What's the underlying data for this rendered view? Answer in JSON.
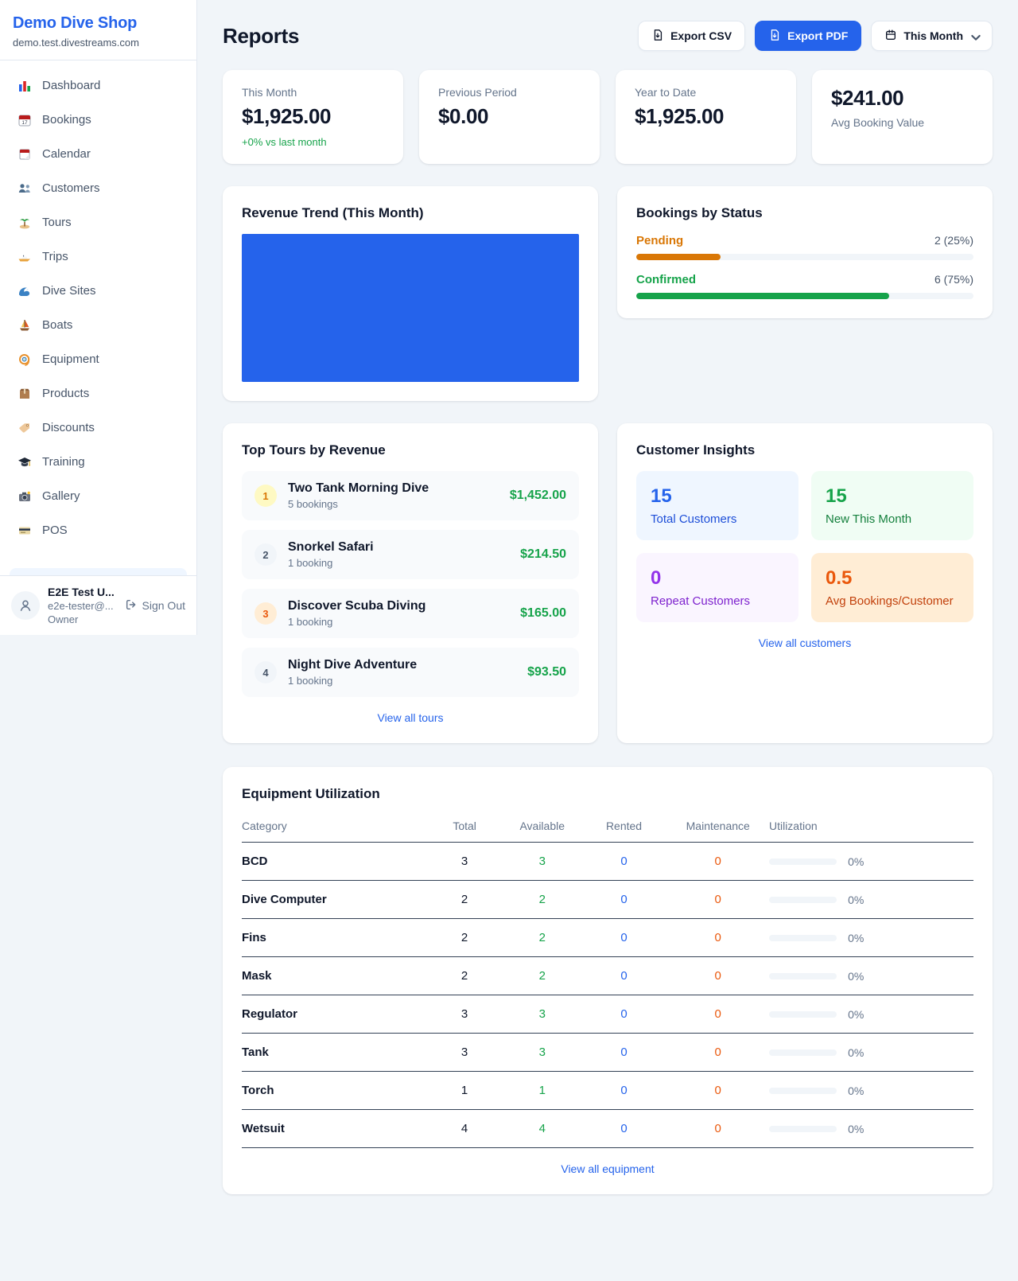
{
  "brand": {
    "name": "Demo Dive Shop",
    "domain": "demo.test.divestreams.com"
  },
  "sidebar": {
    "items": [
      {
        "icon": "bar-chart-icon",
        "label": "Dashboard"
      },
      {
        "icon": "calendar-date-icon",
        "label": "Bookings"
      },
      {
        "icon": "tear-calendar-icon",
        "label": "Calendar"
      },
      {
        "icon": "people-icon",
        "label": "Customers"
      },
      {
        "icon": "island-icon",
        "label": "Tours"
      },
      {
        "icon": "speedboat-icon",
        "label": "Trips"
      },
      {
        "icon": "wave-icon",
        "label": "Dive Sites"
      },
      {
        "icon": "sailboat-icon",
        "label": "Boats"
      },
      {
        "icon": "dive-mask-icon",
        "label": "Equipment"
      },
      {
        "icon": "package-icon",
        "label": "Products"
      },
      {
        "icon": "tag-icon",
        "label": "Discounts"
      },
      {
        "icon": "grad-cap-icon",
        "label": "Training"
      },
      {
        "icon": "camera-icon",
        "label": "Gallery"
      },
      {
        "icon": "credit-card-icon",
        "label": "POS"
      }
    ],
    "user": {
      "name": "E2E Test U...",
      "email": "e2e-tester@...",
      "role": "Owner",
      "signout_label": "Sign Out"
    }
  },
  "header": {
    "title": "Reports",
    "export_csv_label": "Export CSV",
    "export_pdf_label": "Export PDF",
    "period_label": "This Month"
  },
  "stats": [
    {
      "label": "This Month",
      "value": "$1,925.00",
      "delta": "+0% vs last month"
    },
    {
      "label": "Previous Period",
      "value": "$0.00"
    },
    {
      "label": "Year to Date",
      "value": "$1,925.00"
    },
    {
      "label": "Avg Booking Value",
      "value": "$241.00",
      "value_first": true
    }
  ],
  "revenue_trend": {
    "title": "Revenue Trend (This Month)",
    "bar_color": "#2563EB",
    "bar_fill_pct": 100
  },
  "bookings_by_status": {
    "title": "Bookings by Status",
    "rows": [
      {
        "label": "Pending",
        "count": "2 (25%)",
        "pct": 25,
        "color": "#D97706"
      },
      {
        "label": "Confirmed",
        "count": "6 (75%)",
        "pct": 75,
        "color": "#16A34A"
      }
    ]
  },
  "top_tours": {
    "title": "Top Tours by Revenue",
    "link": "View all tours",
    "rows": [
      {
        "rank": "1",
        "name": "Two Tank Morning Dive",
        "bookings": "5 bookings",
        "revenue": "$1,452.00",
        "badge_bg": "#FEF9C3",
        "badge_color": "#D97706"
      },
      {
        "rank": "2",
        "name": "Snorkel Safari",
        "bookings": "1 booking",
        "revenue": "$214.50",
        "badge_bg": "#F1F5F9",
        "badge_color": "#475569"
      },
      {
        "rank": "3",
        "name": "Discover Scuba Diving",
        "bookings": "1 booking",
        "revenue": "$165.00",
        "badge_bg": "#FFEDD5",
        "badge_color": "#EA580C"
      },
      {
        "rank": "4",
        "name": "Night Dive Adventure",
        "bookings": "1 booking",
        "revenue": "$93.50",
        "badge_bg": "#F1F5F9",
        "badge_color": "#475569"
      }
    ]
  },
  "customer_insights": {
    "title": "Customer Insights",
    "link": "View all customers",
    "tiles": [
      {
        "value": "15",
        "label": "Total Customers",
        "bg": "#EFF6FF",
        "value_color": "#2563EB",
        "label_color": "#1D4ED8"
      },
      {
        "value": "15",
        "label": "New This Month",
        "bg": "#F0FDF4",
        "value_color": "#16A34A",
        "label_color": "#15803D"
      },
      {
        "value": "0",
        "label": "Repeat Customers",
        "bg": "#FAF5FF",
        "value_color": "#9333EA",
        "label_color": "#7E22CE"
      },
      {
        "value": "0.5",
        "label": "Avg Bookings/Customer",
        "bg": "#FFEDD5",
        "value_color": "#EA580C",
        "label_color": "#C2410C"
      }
    ]
  },
  "equipment": {
    "title": "Equipment Utilization",
    "link": "View all equipment",
    "columns": [
      "Category",
      "Total",
      "Available",
      "Rented",
      "Maintenance",
      "Utilization"
    ],
    "rows": [
      {
        "category": "BCD",
        "total": "3",
        "available": "3",
        "rented": "0",
        "maintenance": "0",
        "utilization_pct": 0,
        "utilization_label": "0%"
      },
      {
        "category": "Dive Computer",
        "total": "2",
        "available": "2",
        "rented": "0",
        "maintenance": "0",
        "utilization_pct": 0,
        "utilization_label": "0%"
      },
      {
        "category": "Fins",
        "total": "2",
        "available": "2",
        "rented": "0",
        "maintenance": "0",
        "utilization_pct": 0,
        "utilization_label": "0%"
      },
      {
        "category": "Mask",
        "total": "2",
        "available": "2",
        "rented": "0",
        "maintenance": "0",
        "utilization_pct": 0,
        "utilization_label": "0%"
      },
      {
        "category": "Regulator",
        "total": "3",
        "available": "3",
        "rented": "0",
        "maintenance": "0",
        "utilization_pct": 0,
        "utilization_label": "0%"
      },
      {
        "category": "Tank",
        "total": "3",
        "available": "3",
        "rented": "0",
        "maintenance": "0",
        "utilization_pct": 0,
        "utilization_label": "0%"
      },
      {
        "category": "Torch",
        "total": "1",
        "available": "1",
        "rented": "0",
        "maintenance": "0",
        "utilization_pct": 0,
        "utilization_label": "0%"
      },
      {
        "category": "Wetsuit",
        "total": "4",
        "available": "4",
        "rented": "0",
        "maintenance": "0",
        "utilization_pct": 0,
        "utilization_label": "0%"
      }
    ]
  }
}
